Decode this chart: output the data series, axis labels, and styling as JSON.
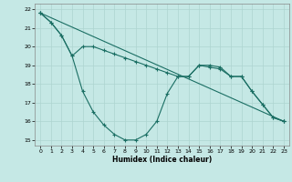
{
  "xlabel": "Humidex (Indice chaleur)",
  "background_color": "#c5e8e5",
  "grid_color": "#aed4d0",
  "line_color": "#1a6e63",
  "xlim": [
    -0.5,
    23.5
  ],
  "ylim": [
    14.7,
    22.3
  ],
  "yticks": [
    15,
    16,
    17,
    18,
    19,
    20,
    21,
    22
  ],
  "xticks": [
    0,
    1,
    2,
    3,
    4,
    5,
    6,
    7,
    8,
    9,
    10,
    11,
    12,
    13,
    14,
    15,
    16,
    17,
    18,
    19,
    20,
    21,
    22,
    23
  ],
  "line1_x": [
    0,
    1,
    2,
    3,
    4,
    5,
    6,
    7,
    8,
    9,
    10,
    11,
    12,
    13,
    14,
    15,
    16,
    17,
    18,
    19,
    20,
    21,
    22,
    23
  ],
  "line1_y": [
    21.8,
    21.3,
    20.6,
    19.5,
    17.6,
    16.5,
    15.8,
    15.3,
    15.0,
    15.0,
    15.3,
    16.0,
    17.5,
    18.4,
    18.4,
    19.0,
    19.0,
    18.9,
    18.4,
    18.4,
    17.6,
    16.9,
    16.2,
    16.0
  ],
  "line2_x": [
    0,
    1,
    2,
    3,
    4,
    5,
    6,
    7,
    8,
    9,
    10,
    11,
    12,
    13,
    14,
    15,
    16,
    17,
    18,
    19,
    20,
    21,
    22,
    23
  ],
  "line2_y": [
    21.8,
    21.3,
    20.6,
    19.5,
    20.0,
    20.0,
    19.8,
    19.6,
    19.4,
    19.2,
    19.0,
    18.8,
    18.6,
    18.4,
    18.4,
    19.0,
    18.9,
    18.8,
    18.4,
    18.4,
    17.6,
    16.9,
    16.2,
    16.0
  ],
  "line3_x": [
    0,
    23
  ],
  "line3_y": [
    21.8,
    16.0
  ]
}
